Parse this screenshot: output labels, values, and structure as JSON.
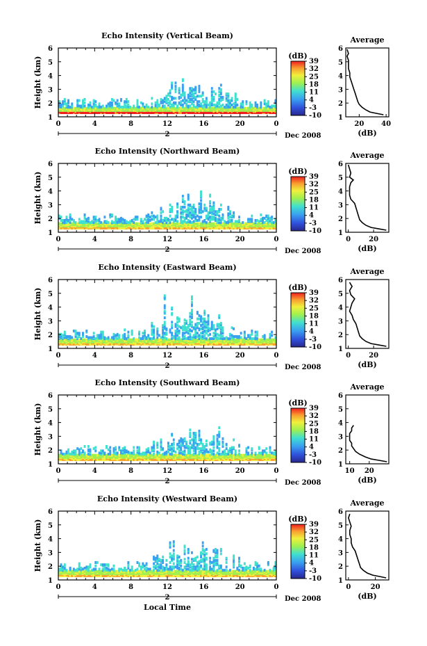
{
  "figure": {
    "local_time_label": "Local Time",
    "date_label": "Dec 2008",
    "day_label": "2",
    "colorbar_unit": "(dB)",
    "colorbar_ticks": [
      "39",
      "32",
      "25",
      "18",
      "11",
      "4",
      "-3",
      "-10"
    ],
    "average_title": "Average",
    "average_xlabel": "(dB)",
    "height_label": "Height (km)",
    "height_ticks": [
      "1",
      "2",
      "3",
      "4",
      "5",
      "6"
    ],
    "time_ticks": [
      "0",
      "4",
      "8",
      "12",
      "16",
      "20",
      "0"
    ]
  },
  "chart_data": [
    {
      "type": "heatmap",
      "title": "Echo Intensity (Vertical Beam)",
      "ylabel": "Height (km)",
      "xlabel": "Local Time",
      "x_ticks": [
        "0",
        "4",
        "8",
        "12",
        "16",
        "20",
        "0"
      ],
      "y_range": [
        1,
        6
      ],
      "colorbar": {
        "unit": "(dB)",
        "range": [
          -10,
          39
        ],
        "ticks": [
          39,
          32,
          25,
          18,
          11,
          4,
          -3,
          -10
        ]
      },
      "average_profile": {
        "title": "Average",
        "xlabel": "(dB)",
        "x_ticks": [
          20,
          40
        ],
        "x_range": [
          10,
          42
        ],
        "y_range": [
          1,
          6
        ],
        "points": [
          [
            38,
            1.15
          ],
          [
            33,
            1.25
          ],
          [
            28,
            1.35
          ],
          [
            25,
            1.5
          ],
          [
            22,
            1.7
          ],
          [
            20,
            1.9
          ],
          [
            19,
            2.1
          ],
          [
            18,
            2.4
          ],
          [
            17,
            2.7
          ],
          [
            16,
            3.0
          ],
          [
            15,
            3.3
          ],
          [
            14,
            3.6
          ],
          [
            13,
            3.9
          ],
          [
            13,
            4.2
          ],
          [
            12,
            4.5
          ],
          [
            12,
            4.8
          ],
          [
            12,
            5.1
          ],
          [
            11,
            5.4
          ],
          [
            12,
            5.6
          ],
          [
            11,
            5.9
          ]
        ]
      }
    },
    {
      "type": "heatmap",
      "title": "Echo Intensity (Northward Beam)",
      "ylabel": "Height (km)",
      "xlabel": "Local Time",
      "x_ticks": [
        "0",
        "4",
        "8",
        "12",
        "16",
        "20",
        "0"
      ],
      "y_range": [
        1,
        6
      ],
      "colorbar": {
        "unit": "(dB)",
        "range": [
          -10,
          39
        ],
        "ticks": [
          39,
          32,
          25,
          18,
          11,
          4,
          -3,
          -10
        ]
      },
      "average_profile": {
        "title": "Average",
        "xlabel": "(dB)",
        "x_ticks": [
          0,
          20
        ],
        "x_range": [
          -2,
          32
        ],
        "y_range": [
          1,
          6
        ],
        "points": [
          [
            30,
            1.15
          ],
          [
            24,
            1.25
          ],
          [
            18,
            1.35
          ],
          [
            14,
            1.5
          ],
          [
            11,
            1.7
          ],
          [
            9,
            1.9
          ],
          [
            8,
            2.2
          ],
          [
            7,
            2.5
          ],
          [
            6,
            2.8
          ],
          [
            5,
            3.1
          ],
          [
            2,
            3.4
          ],
          [
            1,
            3.7
          ],
          [
            1,
            4.0
          ],
          [
            1,
            4.3
          ],
          [
            2,
            4.6
          ],
          [
            4,
            4.8
          ],
          [
            1,
            5.0
          ],
          [
            2,
            5.3
          ],
          [
            1,
            5.6
          ],
          [
            0,
            5.9
          ]
        ]
      }
    },
    {
      "type": "heatmap",
      "title": "Echo Intensity (Eastward Beam)",
      "ylabel": "Height (km)",
      "xlabel": "Local Time",
      "x_ticks": [
        "0",
        "4",
        "8",
        "12",
        "16",
        "20",
        "0"
      ],
      "y_range": [
        1,
        6
      ],
      "colorbar": {
        "unit": "(dB)",
        "range": [
          -10,
          39
        ],
        "ticks": [
          39,
          32,
          25,
          18,
          11,
          4,
          -3,
          -10
        ]
      },
      "average_profile": {
        "title": "Average",
        "xlabel": "(dB)",
        "x_ticks": [
          0,
          20
        ],
        "x_range": [
          -2,
          32
        ],
        "y_range": [
          1,
          6
        ],
        "points": [
          [
            30,
            1.15
          ],
          [
            24,
            1.25
          ],
          [
            18,
            1.35
          ],
          [
            14,
            1.5
          ],
          [
            11,
            1.7
          ],
          [
            9,
            1.9
          ],
          [
            8,
            2.2
          ],
          [
            7,
            2.5
          ],
          [
            6,
            2.8
          ],
          [
            4,
            3.1
          ],
          [
            3,
            3.4
          ],
          [
            1,
            3.7
          ],
          [
            2,
            4.0
          ],
          [
            3,
            4.3
          ],
          [
            5,
            4.6
          ],
          [
            2,
            4.9
          ],
          [
            1,
            5.2
          ],
          [
            3,
            5.5
          ],
          [
            1,
            5.8
          ]
        ]
      }
    },
    {
      "type": "heatmap",
      "title": "Echo Intensity (Southward Beam)",
      "ylabel": "Height (km)",
      "xlabel": "Local Time",
      "x_ticks": [
        "0",
        "4",
        "8",
        "12",
        "16",
        "20",
        "0"
      ],
      "y_range": [
        1,
        6
      ],
      "colorbar": {
        "unit": "(dB)",
        "range": [
          -10,
          39
        ],
        "ticks": [
          39,
          32,
          25,
          18,
          11,
          4,
          -3,
          -10
        ]
      },
      "average_profile": {
        "title": "Average",
        "xlabel": "(dB)",
        "x_ticks": [
          10,
          20
        ],
        "x_range": [
          8,
          30
        ],
        "y_range": [
          1,
          6
        ],
        "points": [
          [
            29,
            1.15
          ],
          [
            25,
            1.25
          ],
          [
            21,
            1.35
          ],
          [
            18,
            1.5
          ],
          [
            15,
            1.7
          ],
          [
            13,
            1.9
          ],
          [
            12,
            2.1
          ],
          [
            11,
            2.3
          ],
          [
            11,
            2.5
          ],
          [
            10,
            2.7
          ],
          [
            10,
            3.0
          ],
          [
            10,
            3.2
          ],
          [
            11,
            3.4
          ],
          [
            11,
            3.6
          ],
          [
            12,
            3.8
          ]
        ]
      }
    },
    {
      "type": "heatmap",
      "title": "Echo Intensity (Westward Beam)",
      "ylabel": "Height (km)",
      "xlabel": "Local Time",
      "x_ticks": [
        "0",
        "4",
        "8",
        "12",
        "16",
        "20",
        "0"
      ],
      "y_range": [
        1,
        6
      ],
      "colorbar": {
        "unit": "(dB)",
        "range": [
          -10,
          39
        ],
        "ticks": [
          39,
          32,
          25,
          18,
          11,
          4,
          -3,
          -10
        ]
      },
      "average_profile": {
        "title": "Average",
        "xlabel": "(dB)",
        "x_ticks": [
          0,
          20
        ],
        "x_range": [
          -2,
          30
        ],
        "y_range": [
          1,
          6
        ],
        "points": [
          [
            28,
            1.15
          ],
          [
            23,
            1.25
          ],
          [
            18,
            1.35
          ],
          [
            14,
            1.5
          ],
          [
            11,
            1.7
          ],
          [
            9,
            1.9
          ],
          [
            8,
            2.2
          ],
          [
            7,
            2.5
          ],
          [
            6,
            2.8
          ],
          [
            5,
            3.1
          ],
          [
            3,
            3.4
          ],
          [
            2,
            3.7
          ],
          [
            2,
            4.0
          ],
          [
            1,
            4.3
          ],
          [
            1,
            4.6
          ],
          [
            2,
            4.9
          ],
          [
            1,
            5.2
          ],
          [
            0,
            5.5
          ],
          [
            1,
            5.8
          ]
        ]
      }
    }
  ]
}
